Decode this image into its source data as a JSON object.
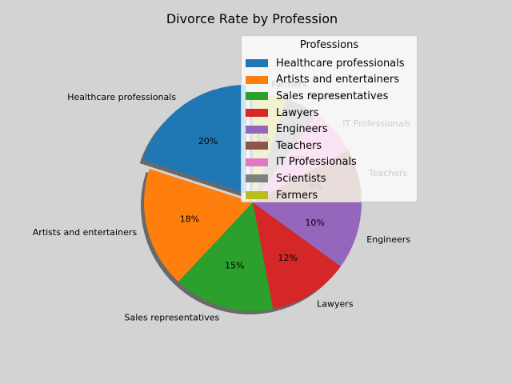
{
  "chart_data": {
    "type": "pie",
    "title": "Divorce Rate by Profession",
    "categories": [
      "Healthcare professionals",
      "Artists and entertainers",
      "Sales representatives",
      "Lawyers",
      "Engineers",
      "Teachers",
      "IT Professionals",
      "Scientists",
      "Farmers"
    ],
    "values": [
      20,
      18,
      15,
      12,
      10,
      8,
      7,
      5,
      5
    ],
    "percent_labels": [
      "20%",
      "18%",
      "15%",
      "12%",
      "10%",
      "8%",
      "7%",
      "5%",
      "5%"
    ],
    "colors": [
      "#1f77b4",
      "#ff7f0e",
      "#2ca02c",
      "#d62728",
      "#9467bd",
      "#8c564b",
      "#e377c2",
      "#7f7f7f",
      "#bcbd22"
    ],
    "explode": "first slice (Healthcare professionals)",
    "shadow": true,
    "legend": {
      "title": "Professions",
      "placement": "top-right"
    }
  }
}
